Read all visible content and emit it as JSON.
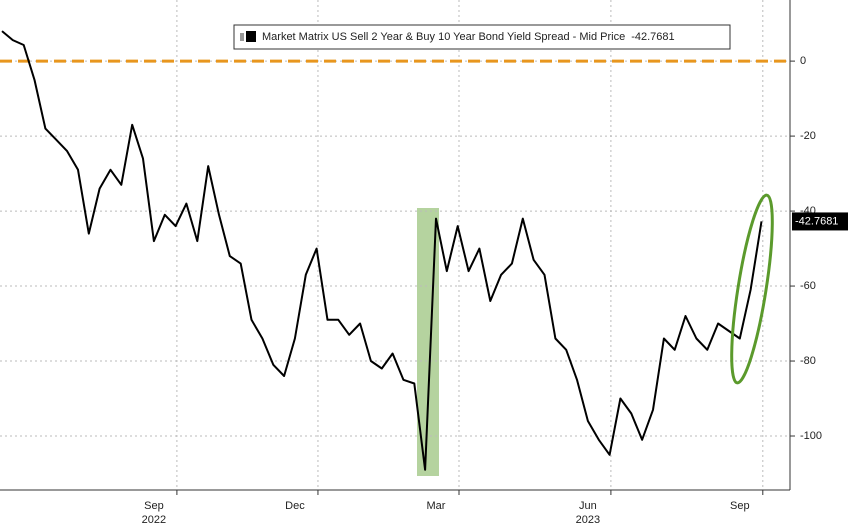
{
  "chart_data": {
    "type": "line",
    "categories": [
      null,
      null,
      null,
      null,
      null,
      null,
      null,
      null,
      null,
      null,
      null,
      null,
      null,
      null,
      "Sep",
      null,
      null,
      null,
      null,
      null,
      null,
      null,
      null,
      null,
      null,
      null,
      null,
      "Dec",
      null,
      null,
      null,
      null,
      null,
      null,
      null,
      null,
      null,
      null,
      null,
      null,
      "Mar",
      null,
      null,
      null,
      null,
      null,
      null,
      null,
      null,
      null,
      null,
      null,
      null,
      null,
      "Jun",
      null,
      null,
      null,
      null,
      null,
      null,
      null,
      null,
      null,
      null,
      null,
      null,
      null,
      "Sep",
      null,
      null
    ],
    "years": [
      "2022",
      "2023"
    ],
    "series": [
      {
        "name": "Market Matrix US Sell 2 Year & Buy 10 Year Bond Yield Spread - Mid Price",
        "color": "#000000",
        "values": [
          8,
          5.6,
          4.3,
          -5,
          -18,
          -21,
          -24,
          -29,
          -46,
          -34,
          -29,
          -33,
          -17,
          -26,
          -48,
          -41,
          -44,
          -38,
          -48,
          -28,
          -41,
          -52,
          -54,
          -69,
          -74,
          -81,
          -84,
          -74,
          -57,
          -50,
          -69,
          -69,
          -73,
          -70,
          -80,
          -82,
          -78,
          -85,
          -86,
          -109,
          -42,
          -56,
          -44,
          -56,
          -50,
          -64,
          -57,
          -54,
          -42,
          -53,
          -57,
          -74,
          -77,
          -85,
          -96,
          -101,
          -105,
          -90,
          -94,
          -101,
          -93,
          -74,
          -77,
          -68,
          -74,
          -77,
          -70,
          -72,
          -74,
          -61,
          -42.7681
        ]
      }
    ],
    "reference_line": {
      "value": 0,
      "color": "#e8961e"
    },
    "ylim": [
      -114.4,
      16.3
    ],
    "yticks": [
      0,
      -20,
      -40,
      -60,
      -80,
      -100
    ],
    "grid": true
  }
}
